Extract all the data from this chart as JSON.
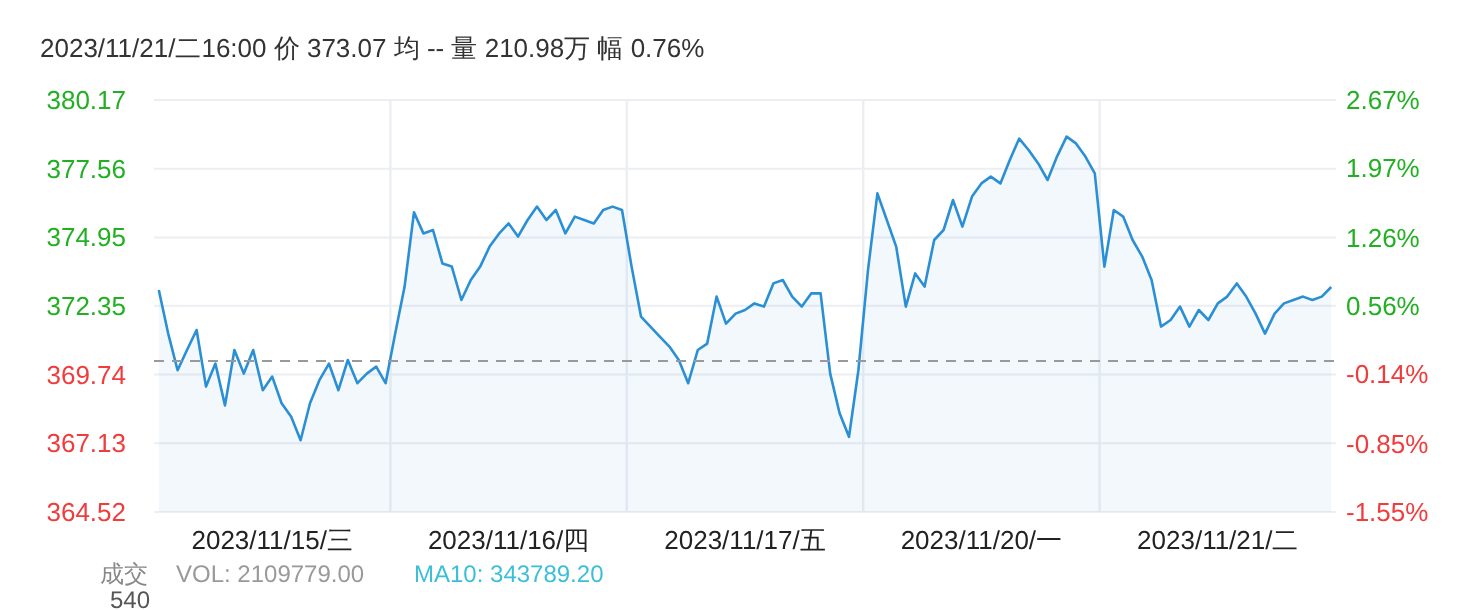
{
  "chart_data": {
    "type": "area",
    "annotations": [
      "2023/11/21/二16:00 价 373.07 均 -- 量 210.98万 幅 0.76%",
      "成交",
      "VOL: 2109779.00",
      "MA10: 343789.20",
      "540"
    ],
    "categories": [
      null,
      null,
      null,
      null,
      null,
      null,
      null,
      null,
      null,
      null,
      null,
      null,
      "2023/11/15/三",
      null,
      null,
      null,
      null,
      null,
      null,
      null,
      null,
      null,
      null,
      null,
      null,
      null,
      null,
      null,
      null,
      null,
      null,
      null,
      null,
      null,
      null,
      null,
      null,
      "2023/11/16/四",
      null,
      null,
      null,
      null,
      null,
      null,
      null,
      null,
      null,
      null,
      null,
      null,
      null,
      null,
      null,
      null,
      null,
      null,
      null,
      null,
      null,
      null,
      null,
      null,
      "2023/11/17/五",
      null,
      null,
      null,
      null,
      null,
      null,
      null,
      null,
      null,
      null,
      null,
      null,
      null,
      null,
      null,
      null,
      null,
      null,
      null,
      null,
      null,
      null,
      null,
      null,
      "2023/11/20/一",
      null,
      null,
      null,
      null,
      null,
      null,
      null,
      null,
      null,
      null,
      null,
      null,
      null,
      null,
      null,
      null,
      null,
      null,
      null,
      null,
      null,
      null,
      null,
      null,
      "2023/11/21/二",
      null,
      null,
      null,
      null,
      null,
      null,
      null,
      null,
      null,
      null,
      null,
      null
    ],
    "series": [
      {
        "color": "#2b8fd6",
        "values": [
          372.95,
          371.3,
          369.91,
          370.67,
          371.43,
          369.28,
          370.16,
          368.57,
          370.67,
          369.78,
          370.67,
          369.15,
          369.66,
          368.65,
          368.14,
          367.25,
          368.65,
          369.53,
          370.16,
          369.15,
          370.29,
          369.41,
          369.78,
          370.04,
          369.41,
          371.3,
          373.08,
          375.91,
          375.1,
          375.23,
          373.96,
          373.84,
          372.57,
          373.33,
          373.84,
          374.6,
          375.1,
          375.48,
          374.98,
          375.61,
          376.12,
          375.61,
          375.99,
          375.1,
          375.74,
          375.61,
          375.48,
          375.99,
          376.12,
          375.99,
          373.84,
          371.94,
          371.56,
          371.18,
          370.8,
          370.29,
          369.41,
          370.67,
          370.92,
          372.7,
          371.68,
          372.06,
          372.19,
          372.44,
          372.32,
          373.2,
          373.33,
          372.7,
          372.32,
          372.82,
          372.82,
          369.78,
          368.27,
          367.38,
          369.91,
          373.71,
          376.62,
          375.61,
          374.6,
          372.32,
          373.58,
          373.08,
          374.85,
          375.23,
          376.37,
          375.36,
          376.5,
          377.0,
          377.26,
          377.0,
          377.89,
          378.7,
          378.27,
          377.76,
          377.13,
          378.02,
          378.78,
          378.52,
          378.02,
          377.38,
          373.84,
          375.99,
          375.74,
          374.85,
          374.22,
          373.33,
          371.56,
          371.81,
          372.32,
          371.56,
          372.19,
          371.81,
          372.44,
          372.7,
          373.2,
          372.7,
          372.06,
          371.3,
          372.06,
          372.44,
          372.57,
          372.7,
          372.57,
          372.7,
          373.07
        ]
      }
    ],
    "ylim": [
      364.52,
      380.17
    ],
    "yticks": [
      380.17,
      377.56,
      374.95,
      372.35,
      369.74,
      367.13,
      364.52
    ],
    "y2lim": [
      -1.55,
      2.67
    ],
    "y2ticks": [
      {
        "value": 2.67,
        "label": "2.67%"
      },
      {
        "value": 1.97,
        "label": "1.97%"
      },
      {
        "value": 1.26,
        "label": "1.26%"
      },
      {
        "value": 0.56,
        "label": "0.56%"
      },
      {
        "value": -0.14,
        "label": "-0.14%"
      },
      {
        "value": -0.85,
        "label": "-0.85%"
      },
      {
        "value": -1.55,
        "label": "-1.55%"
      }
    ],
    "ref_lines": [
      {
        "axis": "y",
        "value": 370.26,
        "color": "#999999",
        "line_style": "dashed"
      }
    ],
    "grid": true,
    "marker": "none",
    "line_style": "solid"
  }
}
